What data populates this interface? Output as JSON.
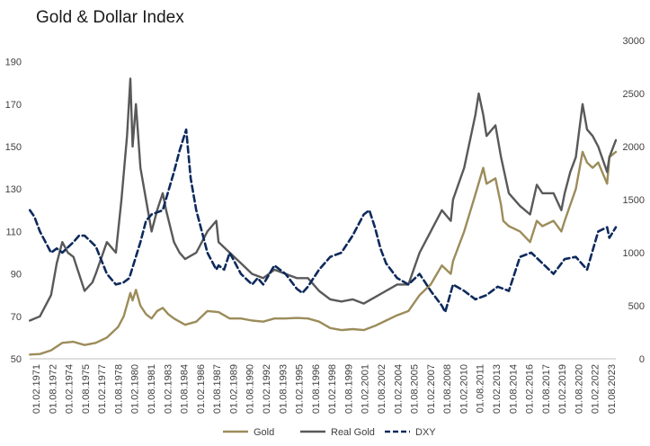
{
  "chart_data": {
    "type": "line",
    "title": "Gold & Dollar Index",
    "xlabel": "",
    "ylabel": "",
    "y_left": {
      "ticks": [
        50,
        70,
        90,
        110,
        130,
        150,
        170,
        190
      ],
      "range": [
        50,
        200
      ]
    },
    "y_right": {
      "ticks": [
        0,
        500,
        1000,
        1500,
        2000,
        2500,
        3000
      ],
      "range": [
        0,
        3000
      ]
    },
    "x_range": [
      1971.08,
      2023.58
    ],
    "x_ticks": [
      "01.02.1971",
      "01.08.1972",
      "01.02.1974",
      "01.08.1975",
      "01.02.1977",
      "01.08.1978",
      "01.02.1980",
      "01.08.1981",
      "01.02.1983",
      "01.08.1984",
      "01.02.1986",
      "01.08.1987",
      "01.02.1989",
      "01.08.1990",
      "01.02.1992",
      "01.08.1993",
      "01.02.1995",
      "01.08.1996",
      "01.02.1998",
      "01.08.1999",
      "01.02.2001",
      "01.08.2002",
      "01.02.2004",
      "01.08.2005",
      "01.02.2007",
      "01.08.2008",
      "01.02.2010",
      "01.08.2011",
      "01.02.2013",
      "01.08.2014",
      "01.02.2016",
      "01.08.2017",
      "01.02.2019",
      "01.08.2020",
      "01.02.2022",
      "01.08.2023"
    ],
    "series": [
      {
        "name": "Gold",
        "axis": "right",
        "color": "#9c8c5a",
        "dash": "solid",
        "x": [
          1971.1,
          1972,
          1973,
          1974,
          1975,
          1976,
          1977,
          1978,
          1979,
          1979.5,
          1980.1,
          1980.3,
          1980.6,
          1981,
          1981.5,
          1982,
          1982.5,
          1983,
          1983.5,
          1984,
          1984.5,
          1985,
          1986,
          1987,
          1988,
          1989,
          1990,
          1991,
          1992,
          1993,
          1994,
          1995,
          1996,
          1997,
          1998,
          1999,
          2000,
          2001,
          2002,
          2003,
          2004,
          2005,
          2006,
          2007,
          2008,
          2008.8,
          2009,
          2010,
          2011,
          2011.7,
          2012,
          2012.8,
          2013.3,
          2013.5,
          2014,
          2015,
          2015.9,
          2016.5,
          2017,
          2018,
          2018.7,
          2019,
          2019.5,
          2020,
          2020.6,
          2021,
          2021.5,
          2022,
          2022.8,
          2023,
          2023.58
        ],
        "values": [
          40,
          45,
          80,
          150,
          160,
          130,
          150,
          200,
          300,
          400,
          620,
          550,
          650,
          500,
          420,
          380,
          450,
          480,
          420,
          380,
          350,
          320,
          350,
          450,
          440,
          380,
          380,
          360,
          350,
          380,
          380,
          385,
          380,
          350,
          290,
          270,
          280,
          270,
          310,
          360,
          410,
          450,
          600,
          700,
          880,
          800,
          920,
          1200,
          1550,
          1800,
          1650,
          1700,
          1450,
          1300,
          1250,
          1200,
          1100,
          1300,
          1250,
          1300,
          1200,
          1300,
          1450,
          1600,
          1950,
          1850,
          1800,
          1850,
          1650,
          1900,
          1950
        ]
      },
      {
        "name": "Real Gold",
        "axis": "left",
        "color": "#595959",
        "dash": "solid",
        "x": [
          1971.1,
          1972,
          1973,
          1973.5,
          1974,
          1974.5,
          1975,
          1975.5,
          1976,
          1976.7,
          1977,
          1978,
          1978.8,
          1979.3,
          1979.8,
          1980.1,
          1980.3,
          1980.6,
          1981,
          1981.5,
          1982,
          1982.5,
          1983,
          1983.3,
          1984,
          1984.5,
          1985,
          1986,
          1987,
          1987.8,
          1988,
          1989,
          1990,
          1991,
          1992,
          1993,
          1994,
          1995,
          1996,
          1997,
          1998,
          1999,
          2000,
          2001,
          2002,
          2003,
          2004,
          2005,
          2006,
          2007,
          2008,
          2008.8,
          2009,
          2010,
          2011,
          2011.3,
          2011.7,
          2012,
          2012.8,
          2013.3,
          2014,
          2015,
          2015.9,
          2016.5,
          2017,
          2018,
          2018.7,
          2019,
          2019.5,
          2020,
          2020.6,
          2021,
          2021.5,
          2022,
          2022.8,
          2023,
          2023.58
        ],
        "values": [
          68,
          70,
          80,
          95,
          105,
          100,
          98,
          90,
          82,
          86,
          90,
          105,
          100,
          125,
          155,
          182,
          150,
          170,
          140,
          125,
          110,
          120,
          128,
          120,
          105,
          100,
          97,
          100,
          110,
          115,
          105,
          100,
          95,
          90,
          88,
          92,
          90,
          88,
          88,
          82,
          78,
          77,
          78,
          76,
          79,
          82,
          85,
          85,
          100,
          110,
          120,
          115,
          125,
          140,
          165,
          175,
          165,
          155,
          160,
          145,
          128,
          122,
          118,
          132,
          128,
          128,
          120,
          128,
          138,
          145,
          170,
          158,
          155,
          150,
          138,
          145,
          153
        ]
      },
      {
        "name": "DXY",
        "axis": "left",
        "color": "#0e2a5c",
        "dash": "dashed",
        "x": [
          1971.1,
          1971.5,
          1972,
          1973,
          1973.5,
          1974,
          1975,
          1975.5,
          1976,
          1977,
          1978,
          1978.8,
          1979.5,
          1980,
          1981,
          1981.5,
          1982,
          1983,
          1984,
          1984.5,
          1985.1,
          1985.5,
          1986,
          1987,
          1987.8,
          1988,
          1988.5,
          1989,
          1990,
          1991,
          1991.5,
          1992,
          1993,
          1994,
          1995,
          1995.5,
          1996,
          1997,
          1998,
          1999,
          2000,
          2001,
          2001.5,
          2002,
          2002.5,
          2003,
          2004,
          2005,
          2006,
          2007,
          2008,
          2008.3,
          2009,
          2010,
          2011,
          2012,
          2013,
          2014,
          2015,
          2016,
          2017,
          2018,
          2019,
          2020,
          2021,
          2022,
          2022.8,
          2023,
          2023.58
        ],
        "values": [
          120,
          117,
          110,
          100,
          102,
          100,
          105,
          108,
          108,
          103,
          90,
          85,
          86,
          88,
          105,
          115,
          118,
          120,
          138,
          148,
          158,
          135,
          120,
          100,
          92,
          94,
          92,
          100,
          90,
          85,
          88,
          85,
          94,
          90,
          83,
          81,
          84,
          92,
          98,
          100,
          108,
          118,
          120,
          112,
          102,
          95,
          88,
          85,
          90,
          82,
          75,
          72,
          85,
          82,
          78,
          80,
          84,
          82,
          98,
          100,
          95,
          90,
          97,
          98,
          92,
          110,
          112,
          107,
          112
        ]
      }
    ],
    "legend": {
      "position": "bottom-center",
      "entries": [
        "Gold",
        "Real Gold",
        "DXY"
      ]
    }
  }
}
